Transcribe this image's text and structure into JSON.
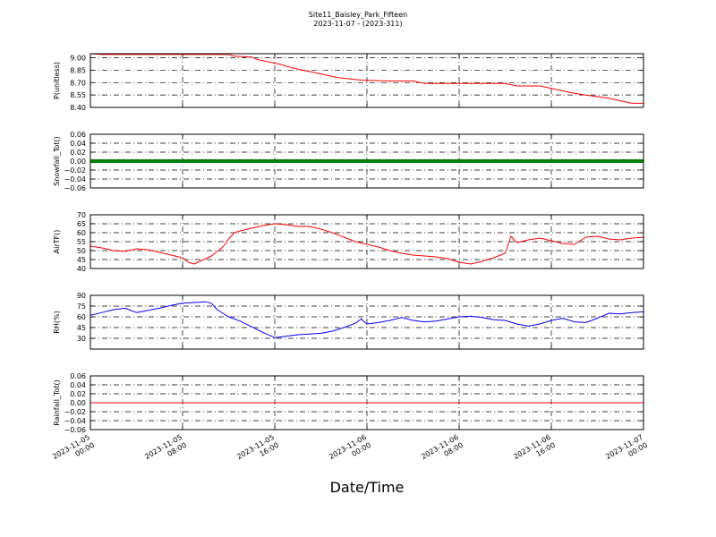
{
  "title_lines": [
    "Site11_Baisley_Park_Fifteen",
    "2023-11-07 - (2023-311)"
  ],
  "chart_data": {
    "type": "line",
    "title": "Site11_Baisley_Park_Fifteen\n2023-11-07 - (2023-311)",
    "xlabel": "Date/Time",
    "x_axis": {
      "start": "2023-11-05 00:00",
      "end": "2023-11-07 00:00",
      "ticks": [
        {
          "hours": 0,
          "label": [
            "2023-11-05",
            "00:00"
          ]
        },
        {
          "hours": 8,
          "label": [
            "2023-11-05",
            "08:00"
          ]
        },
        {
          "hours": 16,
          "label": [
            "2023-11-05",
            "16:00"
          ]
        },
        {
          "hours": 24,
          "label": [
            "2023-11-06",
            "00:00"
          ]
        },
        {
          "hours": 32,
          "label": [
            "2023-11-06",
            "08:00"
          ]
        },
        {
          "hours": 40,
          "label": [
            "2023-11-06",
            "16:00"
          ]
        },
        {
          "hours": 48,
          "label": [
            "2023-11-07",
            "00:00"
          ]
        }
      ]
    },
    "grid": true,
    "panels": [
      {
        "name": "pressure",
        "ylabel": "P(unitless)",
        "ylim": [
          8.4,
          9.05
        ],
        "yticks": [
          8.4,
          8.55,
          8.7,
          8.85,
          9.0
        ],
        "ytick_labels": [
          "8.40",
          "8.55",
          "8.70",
          "8.85",
          "9.00"
        ],
        "color": "#ff0000",
        "marker": "line",
        "points": [
          [
            "2023-11-05 00:00",
            9.05
          ],
          [
            "2023-11-05 01:00",
            9.04
          ],
          [
            "2023-11-05 03:00",
            9.04
          ],
          [
            "2023-11-05 06:00",
            9.04
          ],
          [
            "2023-11-05 09:00",
            9.04
          ],
          [
            "2023-11-05 12:00",
            9.04
          ],
          [
            "2023-11-05 12:30",
            9.02
          ],
          [
            "2023-11-05 14:00",
            9.01
          ],
          [
            "2023-11-05 14:30",
            8.98
          ],
          [
            "2023-11-05 15:30",
            8.95
          ],
          [
            "2023-11-05 16:30",
            8.92
          ],
          [
            "2023-11-05 17:30",
            8.88
          ],
          [
            "2023-11-05 18:30",
            8.85
          ],
          [
            "2023-11-05 19:30",
            8.82
          ],
          [
            "2023-11-05 20:30",
            8.79
          ],
          [
            "2023-11-05 21:30",
            8.76
          ],
          [
            "2023-11-05 23:30",
            8.73
          ],
          [
            "2023-11-06 02:00",
            8.72
          ],
          [
            "2023-11-06 04:00",
            8.72
          ],
          [
            "2023-11-06 05:00",
            8.69
          ],
          [
            "2023-11-06 08:00",
            8.69
          ],
          [
            "2023-11-06 12:00",
            8.69
          ],
          [
            "2023-11-06 13:00",
            8.66
          ],
          [
            "2023-11-06 15:00",
            8.66
          ],
          [
            "2023-11-06 16:00",
            8.63
          ],
          [
            "2023-11-06 17:00",
            8.6
          ],
          [
            "2023-11-06 18:00",
            8.57
          ],
          [
            "2023-11-06 19:30",
            8.54
          ],
          [
            "2023-11-06 21:00",
            8.51
          ],
          [
            "2023-11-06 22:00",
            8.48
          ],
          [
            "2023-11-06 23:00",
            8.45
          ],
          [
            "2023-11-07 00:00",
            8.45
          ]
        ]
      },
      {
        "name": "snowfall",
        "ylabel": "Snowfall_Tot()",
        "ylim": [
          -0.06,
          0.06
        ],
        "yticks": [
          -0.06,
          -0.04,
          -0.02,
          0.0,
          0.02,
          0.04,
          0.06
        ],
        "ytick_labels": [
          "−0.06",
          "−0.04",
          "−0.02",
          "0.00",
          "0.02",
          "0.04",
          "0.06"
        ],
        "color": "#007f00",
        "marker": "thick",
        "points": [
          [
            "2023-11-05 00:00",
            0.0
          ],
          [
            "2023-11-07 00:00",
            0.0
          ]
        ]
      },
      {
        "name": "airtemp",
        "ylabel": "AirTF()",
        "ylim": [
          40,
          70
        ],
        "yticks": [
          40,
          45,
          50,
          55,
          60,
          65,
          70
        ],
        "ytick_labels": [
          "40",
          "45",
          "50",
          "55",
          "60",
          "65",
          "70"
        ],
        "color": "#ff0000",
        "marker": "line",
        "points": [
          [
            "2023-11-05 00:00",
            52.5
          ],
          [
            "2023-11-05 01:00",
            51.5
          ],
          [
            "2023-11-05 02:00",
            50.0
          ],
          [
            "2023-11-05 03:00",
            49.5
          ],
          [
            "2023-11-05 04:00",
            51.0
          ],
          [
            "2023-11-05 05:00",
            50.5
          ],
          [
            "2023-11-05 06:00",
            49.0
          ],
          [
            "2023-11-05 07:00",
            47.5
          ],
          [
            "2023-11-05 08:00",
            46.0
          ],
          [
            "2023-11-05 08:30",
            43.5
          ],
          [
            "2023-11-05 09:00",
            42.5
          ],
          [
            "2023-11-05 09:30",
            44.0
          ],
          [
            "2023-11-05 10:30",
            47.0
          ],
          [
            "2023-11-05 11:30",
            52.0
          ],
          [
            "2023-11-05 12:00",
            56.5
          ],
          [
            "2023-11-05 12:30",
            60.0
          ],
          [
            "2023-11-05 13:00",
            61.0
          ],
          [
            "2023-11-05 14:00",
            62.5
          ],
          [
            "2023-11-05 15:00",
            64.0
          ],
          [
            "2023-11-05 16:00",
            65.0
          ],
          [
            "2023-11-05 17:00",
            64.5
          ],
          [
            "2023-11-05 18:00",
            63.5
          ],
          [
            "2023-11-05 19:00",
            63.5
          ],
          [
            "2023-11-05 20:00",
            62.0
          ],
          [
            "2023-11-05 21:00",
            60.0
          ],
          [
            "2023-11-05 22:00",
            57.5
          ],
          [
            "2023-11-05 23:00",
            55.0
          ],
          [
            "2023-11-06 00:00",
            53.5
          ],
          [
            "2023-11-06 01:00",
            52.0
          ],
          [
            "2023-11-06 02:00",
            50.0
          ],
          [
            "2023-11-06 03:00",
            48.5
          ],
          [
            "2023-11-06 04:00",
            47.5
          ],
          [
            "2023-11-06 05:00",
            47.0
          ],
          [
            "2023-11-06 06:00",
            46.5
          ],
          [
            "2023-11-06 07:00",
            45.5
          ],
          [
            "2023-11-06 08:00",
            43.5
          ],
          [
            "2023-11-06 09:00",
            42.5
          ],
          [
            "2023-11-06 10:00",
            44.0
          ],
          [
            "2023-11-06 11:00",
            46.0
          ],
          [
            "2023-11-06 12:00",
            48.5
          ],
          [
            "2023-11-06 12:30",
            58.0
          ],
          [
            "2023-11-06 13:00",
            54.5
          ],
          [
            "2023-11-06 14:00",
            56.0
          ],
          [
            "2023-11-06 15:00",
            57.0
          ],
          [
            "2023-11-06 16:00",
            55.5
          ],
          [
            "2023-11-06 17:00",
            54.0
          ],
          [
            "2023-11-06 18:00",
            53.5
          ],
          [
            "2023-11-06 19:00",
            57.5
          ],
          [
            "2023-11-06 20:00",
            58.0
          ],
          [
            "2023-11-06 21:00",
            56.5
          ],
          [
            "2023-11-06 22:00",
            56.0
          ],
          [
            "2023-11-06 23:00",
            57.0
          ],
          [
            "2023-11-07 00:00",
            57.5
          ]
        ]
      },
      {
        "name": "humidity",
        "ylabel": "RH(%)",
        "ylim": [
          15,
          90
        ],
        "yticks": [
          30,
          45,
          60,
          75,
          90
        ],
        "ytick_labels": [
          "30",
          "45",
          "60",
          "75",
          "90"
        ],
        "color": "#0000ff",
        "marker": "line",
        "points": [
          [
            "2023-11-05 00:00",
            62.0
          ],
          [
            "2023-11-05 01:00",
            66.0
          ],
          [
            "2023-11-05 02:00",
            70.0
          ],
          [
            "2023-11-05 03:00",
            72.0
          ],
          [
            "2023-11-05 04:00",
            66.0
          ],
          [
            "2023-11-05 05:00",
            69.0
          ],
          [
            "2023-11-05 06:00",
            72.0
          ],
          [
            "2023-11-05 07:00",
            76.0
          ],
          [
            "2023-11-05 08:00",
            79.0
          ],
          [
            "2023-11-05 09:00",
            80.0
          ],
          [
            "2023-11-05 10:00",
            81.0
          ],
          [
            "2023-11-05 10:30",
            79.0
          ],
          [
            "2023-11-05 11:00",
            70.0
          ],
          [
            "2023-11-05 12:00",
            60.0
          ],
          [
            "2023-11-05 13:00",
            54.0
          ],
          [
            "2023-11-05 14:00",
            46.0
          ],
          [
            "2023-11-05 15:00",
            38.0
          ],
          [
            "2023-11-05 16:00",
            31.0
          ],
          [
            "2023-11-05 17:00",
            33.0
          ],
          [
            "2023-11-05 18:00",
            35.0
          ],
          [
            "2023-11-05 19:00",
            36.0
          ],
          [
            "2023-11-05 20:00",
            37.0
          ],
          [
            "2023-11-05 21:00",
            40.0
          ],
          [
            "2023-11-05 22:00",
            45.0
          ],
          [
            "2023-11-05 23:00",
            51.0
          ],
          [
            "2023-11-05 23:30",
            57.0
          ],
          [
            "2023-11-06 00:00",
            50.0
          ],
          [
            "2023-11-06 01:00",
            52.0
          ],
          [
            "2023-11-06 02:00",
            55.0
          ],
          [
            "2023-11-06 03:00",
            59.0
          ],
          [
            "2023-11-06 04:00",
            55.0
          ],
          [
            "2023-11-06 05:00",
            53.0
          ],
          [
            "2023-11-06 06:00",
            54.0
          ],
          [
            "2023-11-06 07:00",
            57.0
          ],
          [
            "2023-11-06 08:00",
            60.0
          ],
          [
            "2023-11-06 09:00",
            61.0
          ],
          [
            "2023-11-06 10:00",
            59.0
          ],
          [
            "2023-11-06 11:00",
            56.0
          ],
          [
            "2023-11-06 12:00",
            55.0
          ],
          [
            "2023-11-06 13:00",
            50.0
          ],
          [
            "2023-11-06 14:00",
            47.0
          ],
          [
            "2023-11-06 15:00",
            50.0
          ],
          [
            "2023-11-06 16:00",
            55.0
          ],
          [
            "2023-11-06 17:00",
            58.0
          ],
          [
            "2023-11-06 18:00",
            53.0
          ],
          [
            "2023-11-06 19:00",
            52.0
          ],
          [
            "2023-11-06 20:00",
            58.0
          ],
          [
            "2023-11-06 21:00",
            65.0
          ],
          [
            "2023-11-06 22:00",
            64.0
          ],
          [
            "2023-11-06 23:00",
            66.0
          ],
          [
            "2023-11-07 00:00",
            67.0
          ]
        ]
      },
      {
        "name": "rainfall",
        "ylabel": "Rainfall_Tot()",
        "ylim": [
          -0.06,
          0.06
        ],
        "yticks": [
          -0.06,
          -0.04,
          -0.02,
          0.0,
          0.02,
          0.04,
          0.06
        ],
        "ytick_labels": [
          "−0.06",
          "−0.04",
          "−0.02",
          "0.00",
          "0.02",
          "0.04",
          "0.06"
        ],
        "color": "#ff0000",
        "marker": "line",
        "points": [
          [
            "2023-11-05 00:00",
            0.0
          ],
          [
            "2023-11-07 00:00",
            0.0
          ]
        ]
      }
    ]
  }
}
